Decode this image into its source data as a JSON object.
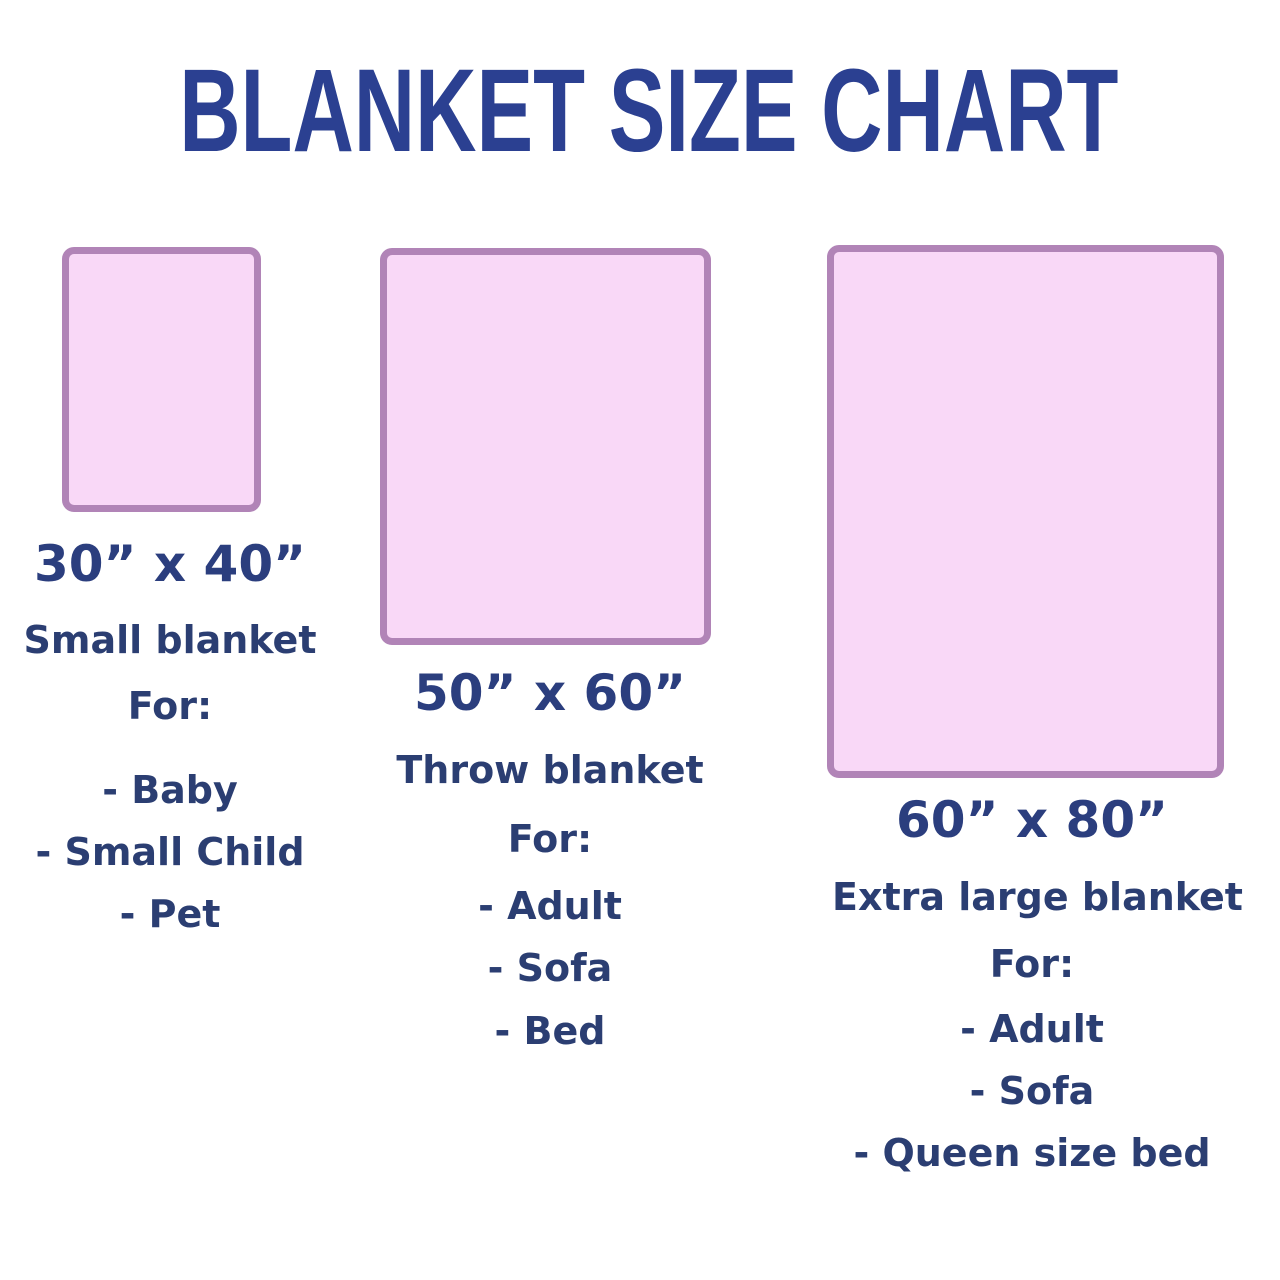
{
  "title": "BLANKET SIZE CHART",
  "colors": {
    "title_blue": "#2B4091",
    "text_navy": "#2B3E72",
    "blanket_fill_pink": "#F9D8F7",
    "blanket_border_purple": "#B184B7",
    "background": "#FFFFFF"
  },
  "blankets": [
    {
      "size_label": "30” x 40”",
      "name": "Small blanket",
      "for_label": "For:",
      "uses": [
        "- Baby",
        "- Small Child",
        "- Pet"
      ]
    },
    {
      "size_label": "50” x 60”",
      "name": "Throw blanket",
      "for_label": "For:",
      "uses": [
        "- Adult",
        "- Sofa",
        "- Bed"
      ]
    },
    {
      "size_label": "60” x 80”",
      "name": "Extra large blanket",
      "for_label": "For:",
      "uses": [
        "- Adult",
        "- Sofa",
        "- Queen size bed"
      ]
    }
  ]
}
